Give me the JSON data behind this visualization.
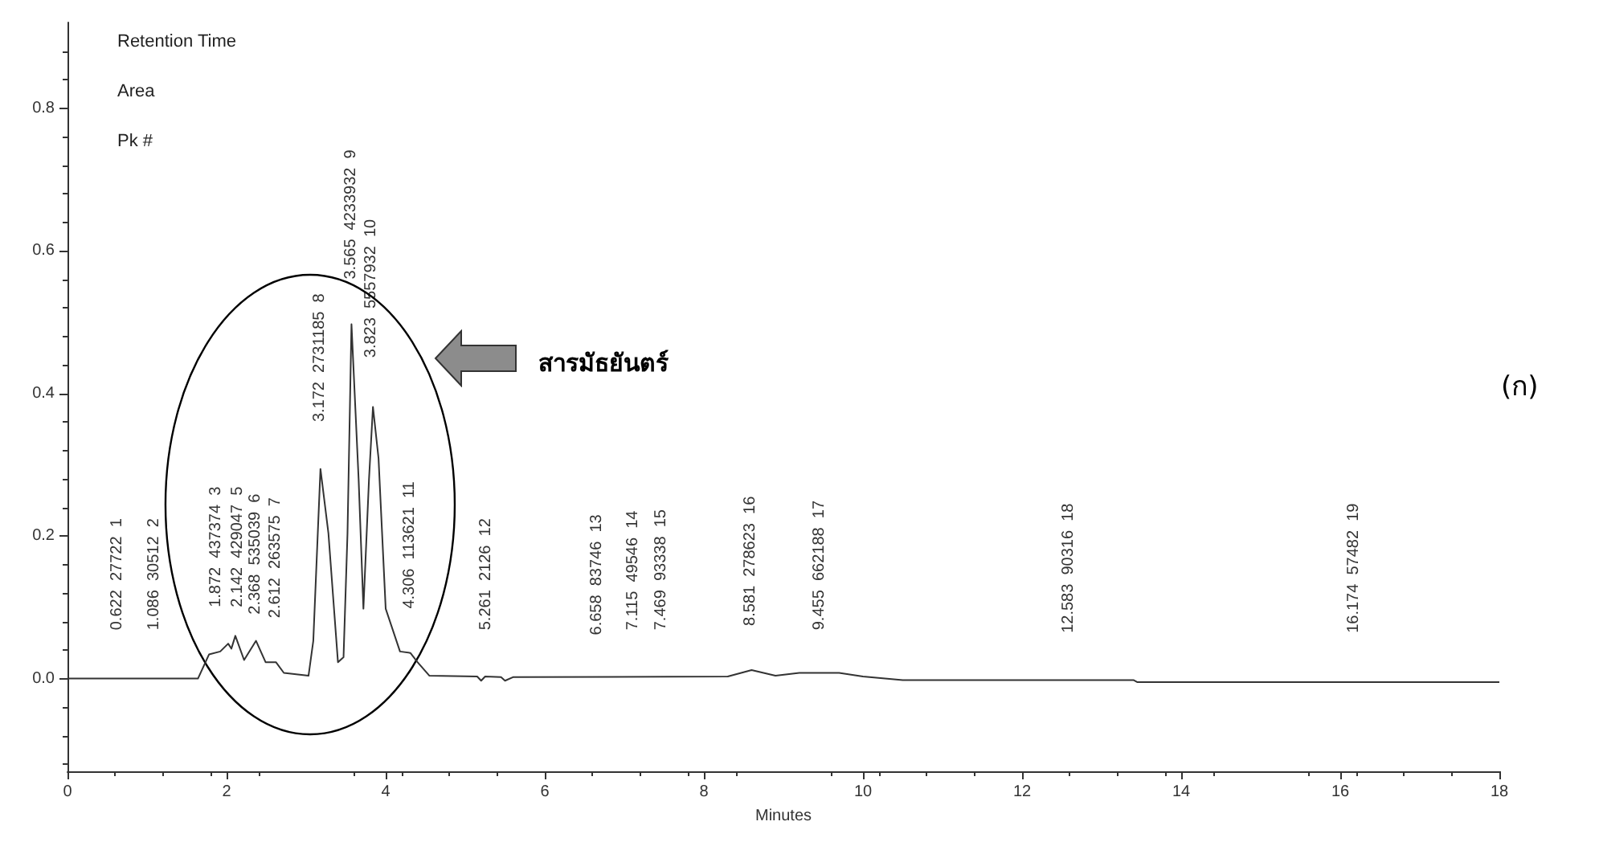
{
  "chart_data": {
    "type": "line",
    "xlabel": "Minutes",
    "color": "#333333",
    "x": [
      0,
      1.64,
      1.78,
      1.92,
      2.02,
      2.06,
      2.11,
      2.22,
      2.37,
      2.49,
      2.62,
      2.72,
      3.03,
      3.09,
      3.18,
      3.28,
      3.4,
      3.47,
      3.52,
      3.57,
      3.66,
      3.72,
      3.79,
      3.84,
      3.91,
      4.0,
      4.18,
      4.31,
      4.4,
      4.55,
      5.15,
      5.2,
      5.25,
      5.45,
      5.5,
      5.6,
      8.3,
      8.6,
      8.9,
      9.2,
      9.7,
      10.0,
      10.5,
      13.4,
      13.45,
      18
    ],
    "values": [
      0,
      0,
      0.034,
      0.038,
      0.049,
      0.042,
      0.06,
      0.026,
      0.053,
      0.023,
      0.023,
      0.008,
      0.004,
      0.053,
      0.294,
      0.204,
      0.023,
      0.03,
      0.204,
      0.497,
      0.279,
      0.098,
      0.279,
      0.381,
      0.309,
      0.098,
      0.038,
      0.036,
      0.023,
      0.004,
      0.003,
      -0.003,
      0.003,
      0.002,
      -0.003,
      0.002,
      0.003,
      0.012,
      0.004,
      0.008,
      0.008,
      0.003,
      -0.002,
      -0.002,
      -0.005,
      -0.005
    ],
    "xlim": [
      0,
      18
    ],
    "xticks": [
      0,
      2,
      4,
      6,
      8,
      10,
      12,
      14,
      16,
      18
    ],
    "ylim": [
      -0.13,
      0.92
    ],
    "yticks": [
      {
        "value": 0,
        "label": "0.0"
      },
      {
        "value": 0.2,
        "label": "0.2"
      },
      {
        "value": 0.4,
        "label": "0.4"
      },
      {
        "value": 0.6,
        "label": "0.6"
      },
      {
        "value": 0.8,
        "label": "0.8"
      }
    ],
    "grid": false,
    "marker": "none",
    "line_style": "solid",
    "annotations": [
      "Retention Time",
      "Area",
      "Pk #",
      "สารมัธยันตร์",
      "(ก)",
      "0.622  27722  1",
      "1.086  30512  2",
      "1.872  437374  3",
      "2.142  429047  5",
      "2.368  535039  6",
      "2.612  263575  7",
      "3.172  2731185  8",
      "3.565  4233932  9",
      "3.823  5557932  10",
      "4.306  113621  11",
      "5.261  2126  12",
      "6.658  83746  13",
      "7.115  49546  14",
      "7.469  93338  15",
      "8.581  278623  16",
      "9.455  662188  17",
      "12.583  90316  18",
      "16.174  57482  19"
    ]
  }
}
